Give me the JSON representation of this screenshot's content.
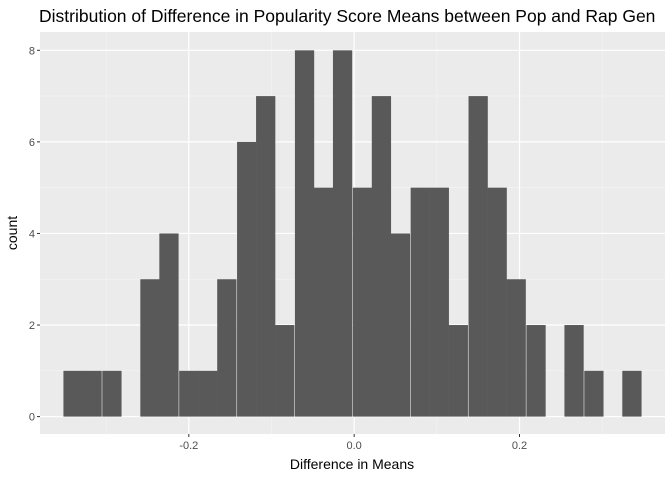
{
  "chart_data": {
    "type": "bar",
    "subtype": "histogram",
    "title": "Distribution of Difference in Popularity Score Means between Pop and Rap Gen",
    "xlabel": "Difference in Means",
    "ylabel": "count",
    "bin_width": 0.0233,
    "bins": [
      {
        "x": -0.34,
        "count": 1
      },
      {
        "x": -0.317,
        "count": 1
      },
      {
        "x": -0.293,
        "count": 1
      },
      {
        "x": -0.27,
        "count": 0
      },
      {
        "x": -0.247,
        "count": 3
      },
      {
        "x": -0.224,
        "count": 4
      },
      {
        "x": -0.2,
        "count": 1
      },
      {
        "x": -0.177,
        "count": 1
      },
      {
        "x": -0.154,
        "count": 3
      },
      {
        "x": -0.13,
        "count": 6
      },
      {
        "x": -0.107,
        "count": 7
      },
      {
        "x": -0.084,
        "count": 2
      },
      {
        "x": -0.06,
        "count": 8
      },
      {
        "x": -0.037,
        "count": 5
      },
      {
        "x": -0.014,
        "count": 8
      },
      {
        "x": 0.01,
        "count": 5
      },
      {
        "x": 0.033,
        "count": 7
      },
      {
        "x": 0.056,
        "count": 4
      },
      {
        "x": 0.08,
        "count": 5
      },
      {
        "x": 0.103,
        "count": 5
      },
      {
        "x": 0.126,
        "count": 2
      },
      {
        "x": 0.15,
        "count": 7
      },
      {
        "x": 0.173,
        "count": 5
      },
      {
        "x": 0.196,
        "count": 3
      },
      {
        "x": 0.22,
        "count": 2
      },
      {
        "x": 0.243,
        "count": 0
      },
      {
        "x": 0.266,
        "count": 2
      },
      {
        "x": 0.29,
        "count": 1
      },
      {
        "x": 0.313,
        "count": 0
      },
      {
        "x": 0.336,
        "count": 1
      }
    ],
    "xlim": [
      -0.38,
      0.376
    ],
    "ylim": [
      -0.38,
      8.4
    ],
    "x_ticks": [
      {
        "value": -0.2,
        "label": "-0.2"
      },
      {
        "value": 0.0,
        "label": "0.0"
      },
      {
        "value": 0.2,
        "label": "0.2"
      }
    ],
    "x_minor_ticks": [
      -0.3,
      -0.1,
      0.1,
      0.3
    ],
    "y_ticks": [
      {
        "value": 0,
        "label": "0"
      },
      {
        "value": 2,
        "label": "2"
      },
      {
        "value": 4,
        "label": "4"
      },
      {
        "value": 6,
        "label": "6"
      },
      {
        "value": 8,
        "label": "8"
      }
    ],
    "y_minor_ticks": [
      1,
      3,
      5,
      7
    ],
    "grid": true,
    "legend": "none",
    "colors": {
      "bar_fill": "#595959",
      "panel_background": "#ebebeb",
      "grid_major": "#ffffff",
      "grid_minor": "#f5f5f5",
      "tick_text": "#4d4d4d",
      "tick_mark": "#333333"
    }
  }
}
